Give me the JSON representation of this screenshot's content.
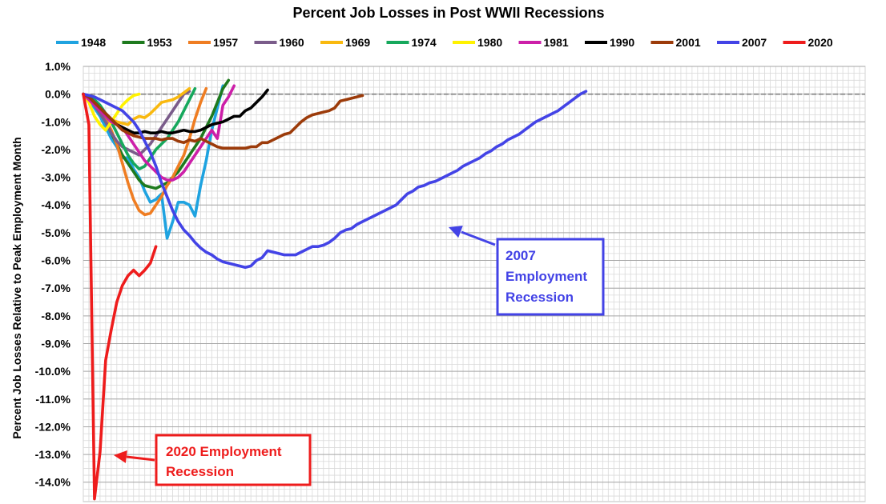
{
  "chart_data": {
    "type": "line",
    "title": "Percent Job Losses in Post WWII Recessions",
    "ylabel": "Percent Job Losses Relative to Peak Employment Month",
    "xlabel": "",
    "ylim": [
      -14.7,
      1.0
    ],
    "xlim": [
      0,
      140
    ],
    "y_ticks": [
      1,
      0,
      -1,
      -2,
      -3,
      -4,
      -5,
      -6,
      -7,
      -8,
      -9,
      -10,
      -11,
      -12,
      -13,
      -14
    ],
    "y_tick_labels": [
      "1.0%",
      "0.0%",
      "-1.0%",
      "-2.0%",
      "-3.0%",
      "-4.0%",
      "-5.0%",
      "-6.0%",
      "-7.0%",
      "-8.0%",
      "-9.0%",
      "-10.0%",
      "-11.0%",
      "-12.0%",
      "-13.0%",
      "-14.0%"
    ],
    "grid": true,
    "legend_position": "top",
    "series": [
      {
        "name": "1948",
        "color": "#1fa3e0",
        "values": [
          0,
          -0.2,
          -0.5,
          -0.8,
          -1.2,
          -1.6,
          -1.9,
          -2.3,
          -2.3,
          -2.7,
          -3.0,
          -3.5,
          -3.9,
          -3.8,
          -3.6,
          -5.2,
          -4.6,
          -3.9,
          -3.9,
          -4.0,
          -4.4,
          -3.3,
          -2.4,
          -1.3,
          -0.5,
          0.3
        ]
      },
      {
        "name": "1953",
        "color": "#1e7a1e",
        "values": [
          0,
          -0.1,
          -0.4,
          -0.7,
          -1.0,
          -1.4,
          -1.8,
          -2.2,
          -2.5,
          -2.8,
          -3.1,
          -3.3,
          -3.35,
          -3.4,
          -3.3,
          -3.2,
          -3.0,
          -2.8,
          -2.5,
          -2.2,
          -1.9,
          -1.6,
          -1.2,
          -0.8,
          -0.3,
          0.2,
          0.5
        ]
      },
      {
        "name": "1957",
        "color": "#ef7d22",
        "values": [
          0,
          -0.1,
          -0.3,
          -0.6,
          -0.9,
          -1.3,
          -1.8,
          -2.5,
          -3.2,
          -3.8,
          -4.2,
          -4.35,
          -4.3,
          -4.0,
          -3.7,
          -3.3,
          -3.0,
          -2.6,
          -2.2,
          -1.6,
          -0.9,
          -0.3,
          0.2
        ]
      },
      {
        "name": "1960",
        "color": "#7a5c8a",
        "values": [
          0,
          -0.2,
          -0.4,
          -0.7,
          -1.0,
          -1.4,
          -1.7,
          -1.9,
          -2.0,
          -2.1,
          -2.2,
          -2.0,
          -1.8,
          -1.5,
          -1.2,
          -0.9,
          -0.6,
          -0.3,
          0.0,
          0.1
        ]
      },
      {
        "name": "1969",
        "color": "#f9b90f",
        "values": [
          0,
          -0.1,
          -0.3,
          -0.5,
          -0.7,
          -0.9,
          -1.0,
          -1.05,
          -1.1,
          -0.9,
          -0.8,
          -0.85,
          -0.7,
          -0.5,
          -0.3,
          -0.25,
          -0.2,
          -0.1,
          0.05,
          0.2
        ]
      },
      {
        "name": "1974",
        "color": "#16a85c",
        "values": [
          0,
          -0.1,
          -0.2,
          -0.4,
          -0.7,
          -1.0,
          -1.4,
          -1.8,
          -2.2,
          -2.5,
          -2.7,
          -2.6,
          -2.3,
          -2.0,
          -1.8,
          -1.6,
          -1.3,
          -1.0,
          -0.6,
          -0.2,
          0.2
        ]
      },
      {
        "name": "1980",
        "color": "#fff200",
        "values": [
          0,
          -0.3,
          -0.8,
          -1.1,
          -1.3,
          -1.0,
          -0.7,
          -0.4,
          -0.2,
          -0.05,
          0.0
        ]
      },
      {
        "name": "1981",
        "color": "#cc1fa8",
        "values": [
          0,
          -0.2,
          -0.4,
          -0.6,
          -0.8,
          -1.0,
          -1.1,
          -1.2,
          -1.5,
          -1.8,
          -2.1,
          -2.4,
          -2.6,
          -2.8,
          -3.0,
          -3.1,
          -3.1,
          -3.0,
          -2.8,
          -2.5,
          -2.2,
          -1.9,
          -1.6,
          -1.3,
          -1.6,
          -0.4,
          -0.1,
          0.3
        ]
      },
      {
        "name": "1990",
        "color": "#000000",
        "values": [
          0,
          -0.1,
          -0.3,
          -0.5,
          -0.7,
          -0.9,
          -1.1,
          -1.2,
          -1.3,
          -1.4,
          -1.4,
          -1.35,
          -1.4,
          -1.4,
          -1.35,
          -1.4,
          -1.4,
          -1.35,
          -1.3,
          -1.35,
          -1.35,
          -1.3,
          -1.2,
          -1.1,
          -1.05,
          -1.0,
          -0.9,
          -0.8,
          -0.8,
          -0.6,
          -0.5,
          -0.3,
          -0.1,
          0.15
        ]
      },
      {
        "name": "2001",
        "color": "#9c3b0a",
        "values": [
          0,
          -0.1,
          -0.3,
          -0.5,
          -0.7,
          -0.9,
          -1.1,
          -1.3,
          -1.4,
          -1.5,
          -1.55,
          -1.6,
          -1.6,
          -1.6,
          -1.65,
          -1.6,
          -1.6,
          -1.7,
          -1.75,
          -1.65,
          -1.7,
          -1.6,
          -1.7,
          -1.8,
          -1.9,
          -1.95,
          -1.95,
          -1.95,
          -1.95,
          -1.95,
          -1.9,
          -1.9,
          -1.75,
          -1.75,
          -1.65,
          -1.55,
          -1.45,
          -1.4,
          -1.2,
          -1.0,
          -0.85,
          -0.75,
          -0.7,
          -0.65,
          -0.6,
          -0.5,
          -0.25,
          -0.2,
          -0.15,
          -0.1,
          -0.05
        ]
      },
      {
        "name": "2007",
        "color": "#4343e6",
        "values": [
          0,
          -0.05,
          -0.1,
          -0.2,
          -0.3,
          -0.4,
          -0.5,
          -0.6,
          -0.8,
          -1.0,
          -1.3,
          -1.7,
          -2.1,
          -2.6,
          -3.2,
          -3.7,
          -4.2,
          -4.6,
          -4.9,
          -5.1,
          -5.35,
          -5.55,
          -5.7,
          -5.8,
          -5.95,
          -6.05,
          -6.1,
          -6.15,
          -6.2,
          -6.25,
          -6.2,
          -6.0,
          -5.9,
          -5.65,
          -5.7,
          -5.75,
          -5.8,
          -5.8,
          -5.8,
          -5.7,
          -5.6,
          -5.5,
          -5.5,
          -5.45,
          -5.35,
          -5.2,
          -5.0,
          -4.9,
          -4.85,
          -4.7,
          -4.6,
          -4.5,
          -4.4,
          -4.3,
          -4.2,
          -4.1,
          -4.0,
          -3.8,
          -3.6,
          -3.5,
          -3.35,
          -3.3,
          -3.2,
          -3.15,
          -3.05,
          -2.95,
          -2.85,
          -2.75,
          -2.6,
          -2.5,
          -2.4,
          -2.3,
          -2.15,
          -2.05,
          -1.9,
          -1.8,
          -1.65,
          -1.55,
          -1.45,
          -1.3,
          -1.15,
          -1.0,
          -0.9,
          -0.8,
          -0.7,
          -0.6,
          -0.45,
          -0.3,
          -0.15,
          0.0,
          0.1
        ]
      },
      {
        "name": "2020",
        "color": "#ee1c1c",
        "values": [
          0,
          -1.1,
          -14.6,
          -12.9,
          -9.6,
          -8.5,
          -7.5,
          -6.9,
          -6.55,
          -6.35,
          -6.55,
          -6.35,
          -6.1,
          -5.5
        ]
      }
    ]
  },
  "annotations": [
    {
      "lines": [
        "2020 Employment",
        "Recession"
      ],
      "color": "#ee1c1c"
    },
    {
      "lines": [
        "2007",
        "Employment",
        "Recession"
      ],
      "color": "#4343e6"
    }
  ]
}
